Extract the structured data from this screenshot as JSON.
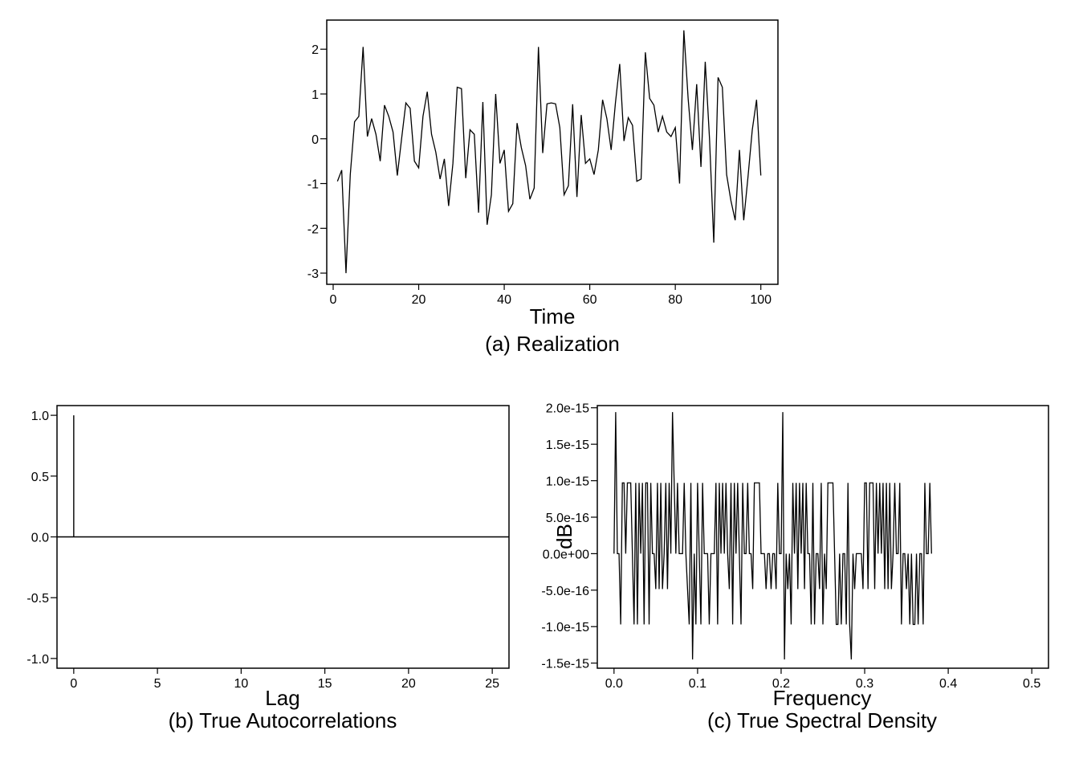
{
  "chart_data": [
    {
      "id": "realization",
      "type": "line",
      "caption": "(a) Realization",
      "xlabel": "Time",
      "ylabel": "",
      "xlim": [
        -1.5,
        104
      ],
      "ylim": [
        -3.25,
        2.65
      ],
      "xticks": [
        0,
        20,
        40,
        60,
        80,
        100
      ],
      "xtick_labels": [
        "0",
        "20",
        "40",
        "60",
        "80",
        "100"
      ],
      "yticks": [
        -3,
        -2,
        -1,
        0,
        1,
        2
      ],
      "ytick_labels": [
        "-3",
        "-2",
        "-1",
        "0",
        "1",
        "2"
      ],
      "x_start": 1,
      "values": [
        -0.95,
        -0.7,
        -3.0,
        -0.8,
        0.38,
        0.5,
        2.05,
        0.05,
        0.45,
        0.1,
        -0.5,
        0.75,
        0.5,
        0.15,
        -0.82,
        0.0,
        0.8,
        0.68,
        -0.5,
        -0.65,
        0.5,
        1.05,
        0.1,
        -0.3,
        -0.9,
        -0.45,
        -1.5,
        -0.55,
        1.15,
        1.12,
        -0.88,
        0.2,
        0.1,
        -1.65,
        0.82,
        -1.92,
        -1.25,
        1.0,
        -0.55,
        -0.25,
        -1.62,
        -1.45,
        0.35,
        -0.2,
        -0.6,
        -1.35,
        -1.1,
        2.05,
        -0.32,
        0.78,
        0.8,
        0.78,
        0.25,
        -1.25,
        -1.05,
        0.77,
        -1.3,
        0.53,
        -0.55,
        -0.45,
        -0.8,
        -0.25,
        0.87,
        0.45,
        -0.25,
        0.8,
        1.67,
        -0.05,
        0.47,
        0.3,
        -0.95,
        -0.9,
        1.93,
        0.9,
        0.75,
        0.15,
        0.5,
        0.15,
        0.05,
        0.25,
        -1.0,
        2.42,
        0.9,
        -0.25,
        1.22,
        -0.63,
        1.72,
        0.0,
        -2.32,
        1.37,
        1.15,
        -0.8,
        -1.38,
        -1.82,
        -0.25,
        -1.82,
        -0.85,
        0.2,
        0.87,
        -0.82
      ]
    },
    {
      "id": "autocorrelations",
      "type": "bar",
      "caption": "(b) True Autocorrelations",
      "xlabel": "Lag",
      "ylabel": "",
      "xlim": [
        -1,
        26
      ],
      "ylim": [
        -1.08,
        1.08
      ],
      "xticks": [
        0,
        5,
        10,
        15,
        20,
        25
      ],
      "xtick_labels": [
        "0",
        "5",
        "10",
        "15",
        "20",
        "25"
      ],
      "yticks": [
        -1.0,
        -0.5,
        0.0,
        0.5,
        1.0
      ],
      "ytick_labels": [
        "-1.0",
        "-0.5",
        "0.0",
        "0.5",
        "1.0"
      ],
      "lags": [
        0,
        1,
        2,
        3,
        4,
        5,
        6,
        7,
        8,
        9,
        10,
        11,
        12,
        13,
        14,
        15,
        16,
        17,
        18,
        19,
        20,
        21,
        22,
        23,
        24,
        25,
        26
      ],
      "values": [
        1.0,
        0,
        0,
        0,
        0,
        0,
        0,
        0,
        0,
        0,
        0,
        0,
        0,
        0,
        0,
        0,
        0,
        0,
        0,
        0,
        0,
        0,
        0,
        0,
        0,
        0,
        0
      ]
    },
    {
      "id": "spectral_density",
      "type": "line",
      "caption": "(c) True Spectral Density",
      "xlabel": "Frequency",
      "ylabel": "dB",
      "xlim": [
        -0.02,
        0.52
      ],
      "ylim": [
        -1.57e-15,
        2.03e-15
      ],
      "xticks": [
        0.0,
        0.1,
        0.2,
        0.3,
        0.4,
        0.5
      ],
      "xtick_labels": [
        "0.0",
        "0.1",
        "0.2",
        "0.3",
        "0.4",
        "0.5"
      ],
      "yticks": [
        -1.5e-15,
        -1e-15,
        -5e-16,
        0.0,
        5e-16,
        1e-15,
        1.5e-15,
        2e-15
      ],
      "ytick_labels": [
        "-1.5e-15",
        "-1.0e-15",
        "-5.0e-16",
        "0.0e+00",
        "5.0e-16",
        "1.0e-15",
        "1.5e-15",
        "2.0e-15"
      ],
      "x_step": 0.002,
      "values_e16": [
        0,
        19.4,
        0,
        0,
        -9.7,
        9.7,
        9.7,
        0,
        9.7,
        9.7,
        9.7,
        0,
        -9.7,
        9.7,
        -9.7,
        9.7,
        0,
        9.7,
        -9.7,
        9.7,
        9.7,
        -9.7,
        9.7,
        0,
        0,
        -4.85,
        9.7,
        -4.85,
        9.7,
        -4.85,
        0,
        9.7,
        -4.85,
        9.7,
        0,
        19.4,
        9.7,
        0,
        9.7,
        0,
        0,
        0,
        9.7,
        0,
        -4.85,
        -9.7,
        9.7,
        -14.5,
        0,
        -9.7,
        9.7,
        0,
        -9.7,
        9.7,
        0,
        0,
        0,
        -9.7,
        0,
        0,
        0,
        9.7,
        -9.7,
        9.7,
        0,
        9.7,
        0,
        9.7,
        0,
        -4.85,
        9.7,
        -9.7,
        9.7,
        0,
        9.7,
        0,
        -9.7,
        9.7,
        0,
        0,
        9.7,
        0,
        0,
        -4.85,
        9.7,
        9.7,
        9.7,
        9.7,
        0,
        0,
        0,
        -4.85,
        0,
        0,
        -4.85,
        0,
        0,
        -4.85,
        9.7,
        0,
        0,
        19.4,
        -14.5,
        0,
        -4.85,
        0,
        -9.7,
        9.7,
        0,
        9.7,
        -4.85,
        9.7,
        0,
        9.7,
        -4.85,
        9.7,
        0,
        0,
        -9.7,
        9.7,
        -9.7,
        0,
        0,
        -4.85,
        9.7,
        -9.7,
        0,
        -4.85,
        9.7,
        9.7,
        9.7,
        9.7,
        0,
        -9.7,
        -9.7,
        0,
        -9.7,
        0,
        0,
        -9.7,
        9.7,
        -9.7,
        -14.5,
        0,
        -4.85,
        0,
        0,
        0,
        0,
        -4.85,
        9.7,
        9.7,
        -4.85,
        9.7,
        9.7,
        9.7,
        -4.85,
        9.7,
        0,
        9.7,
        0,
        9.7,
        -4.85,
        9.7,
        -4.85,
        9.7,
        -4.85,
        0,
        9.7,
        0,
        0,
        9.7,
        -9.7,
        0,
        0,
        -4.85,
        0,
        -9.7,
        0,
        -9.7,
        -9.7,
        0,
        -9.7,
        0,
        0,
        -9.7,
        9.7,
        0,
        0,
        9.7,
        0
      ]
    }
  ]
}
